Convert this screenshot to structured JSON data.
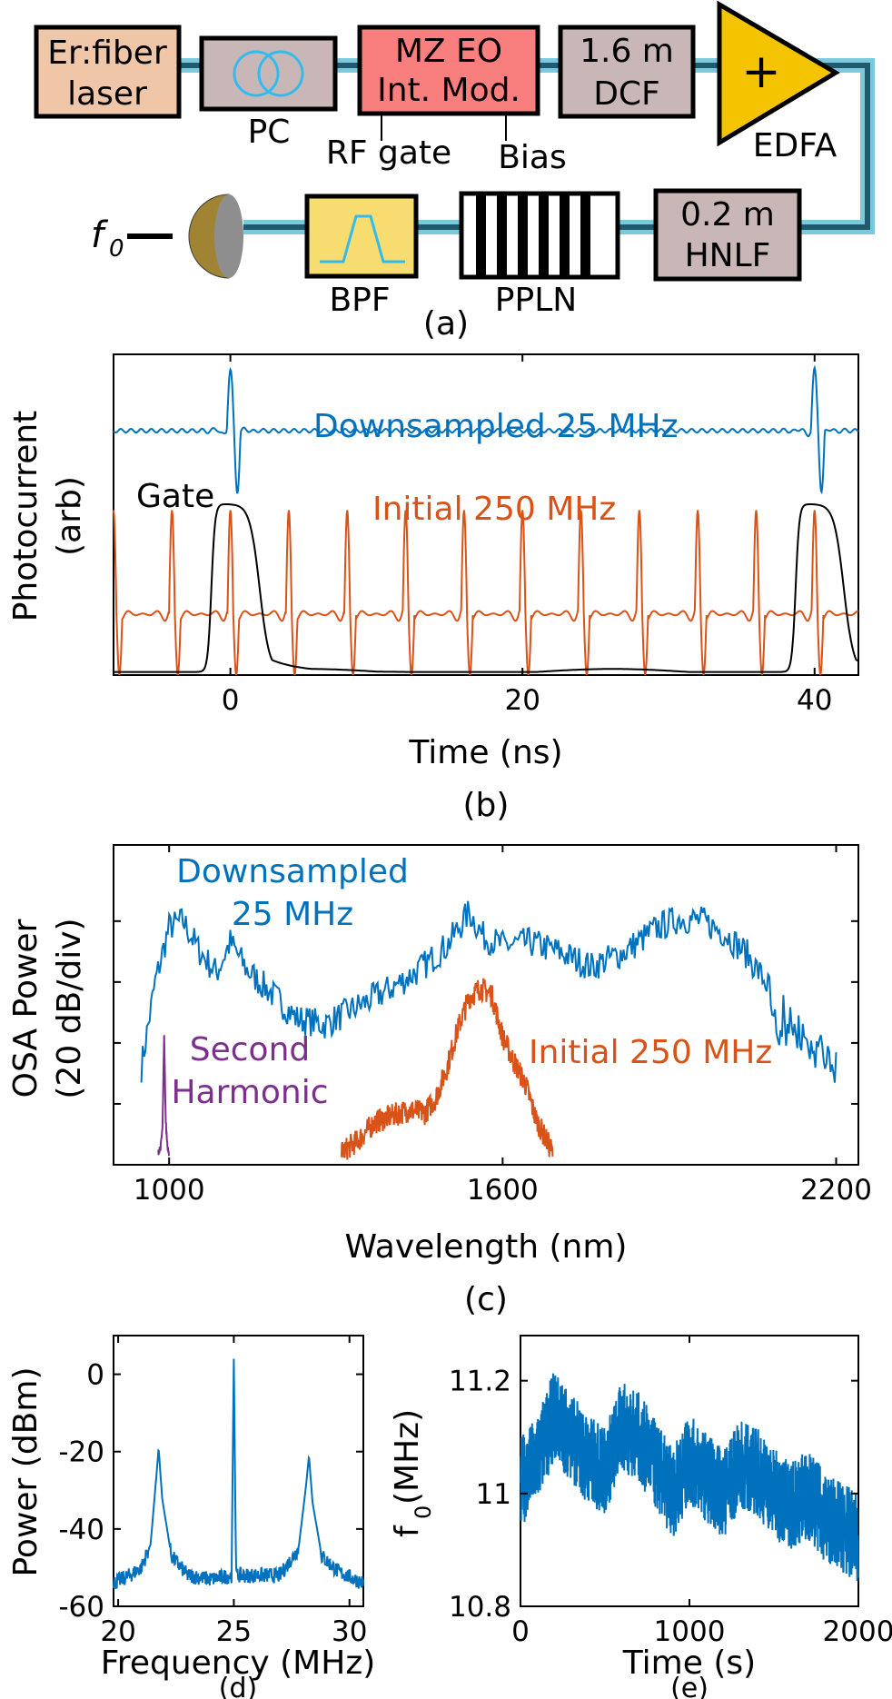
{
  "colors": {
    "blue": "#0072BD",
    "orange": "#D95319",
    "purple": "#7E2F8E",
    "black": "#000000",
    "fiber": "#1f5a6e",
    "fiber_glow": "#7cc9de",
    "laser_fill": "#efc7a8",
    "pc_fill": "#c9b7b8",
    "mod_fill": "#f97f7f",
    "dcf_fill": "#c9b7b8",
    "edfa_fill": "#f5c400",
    "hnlf_fill": "#c9b7b8",
    "bpf_fill": "#f7dc6f",
    "detector_fill": "#a08434",
    "pc_icon": "#33bbee"
  },
  "schematic": {
    "laser": "Er:fiber laser",
    "laser_line1": "Er:fiber",
    "laser_line2": "laser",
    "pc": "PC",
    "modulator_line1": "MZ EO",
    "modulator_line2": "Int. Mod.",
    "rf_gate": "RF gate",
    "bias": "Bias",
    "dcf_line1": "1.6 m",
    "dcf_line2": "DCF",
    "edfa": "EDFA",
    "edfa_symbol": "+",
    "hnlf_line1": "0.2 m",
    "hnlf_line2": "HNLF",
    "ppln": "PPLN",
    "bpf": "BPF",
    "output_f": "f",
    "output_sub": "0",
    "panel": "(a)"
  },
  "chart_data": [
    {
      "id": "b",
      "type": "line",
      "panel": "(b)",
      "xlabel": "Time (ns)",
      "ylabel_line1": "Photocurrent",
      "ylabel_line2": "(arb)",
      "xlim": [
        -8,
        43
      ],
      "xticks": [
        0,
        20,
        40
      ],
      "yticks": [],
      "series": [
        {
          "name": "Downsampled 25 MHz",
          "color": "#0072BD",
          "waveform": "pulse",
          "pulse_times": [
            0,
            40
          ],
          "baseline": 0.8,
          "pulse_peak": 1.0,
          "pulse_min": 0.6
        },
        {
          "name": "Initial 250 MHz",
          "color": "#D95319",
          "waveform": "pulse",
          "pulse_period": 4,
          "pulse_start": -8,
          "baseline": 0.2,
          "pulse_peak": 0.54,
          "pulse_min": 0.0
        },
        {
          "name": "Gate",
          "color": "#000000",
          "waveform": "gate",
          "gate_windows": [
            [
              -1.3,
              2.0
            ],
            [
              38.7,
              42.0
            ]
          ],
          "low": 0.01,
          "high": 0.56
        }
      ]
    },
    {
      "id": "c",
      "type": "line",
      "panel": "(c)",
      "xlabel": "Wavelength (nm)",
      "ylabel_line1": "OSA Power",
      "ylabel_line2": "(20 dB/div)",
      "xlim": [
        900,
        2240
      ],
      "ylim": [
        -100,
        5
      ],
      "xticks": [
        1000,
        1600,
        2200
      ],
      "yticks": [
        -80,
        -60,
        -40,
        -20
      ],
      "series": [
        {
          "name": "Downsampled 25 MHz",
          "label_line1": "Downsampled",
          "label_line2": "25 MHz",
          "color": "#0072BD",
          "x": [
            950,
            975,
            1000,
            1025,
            1055,
            1085,
            1110,
            1140,
            1180,
            1230,
            1280,
            1340,
            1400,
            1450,
            1500,
            1540,
            1565,
            1600,
            1650,
            1700,
            1760,
            1820,
            1880,
            1920,
            1960,
            2000,
            2040,
            2080,
            2110,
            2140,
            2160,
            2200
          ],
          "y": [
            -68,
            -40,
            -22,
            -20,
            -30,
            -37,
            -27,
            -36,
            -43,
            -52,
            -54,
            -48,
            -42,
            -36,
            -28,
            -17,
            -25,
            -28,
            -27,
            -30,
            -35,
            -30,
            -22,
            -19,
            -20,
            -24,
            -31,
            -42,
            -48,
            -50,
            -57,
            -57
          ]
        },
        {
          "name": "Initial 250 MHz",
          "color": "#D95319",
          "x": [
            1310,
            1340,
            1370,
            1400,
            1430,
            1460,
            1480,
            1500,
            1520,
            1540,
            1560,
            1580,
            1600,
            1620,
            1640,
            1660,
            1690
          ],
          "y": [
            -96,
            -92,
            -86,
            -84,
            -82,
            -83,
            -78,
            -68,
            -55,
            -45,
            -42,
            -44,
            -58,
            -66,
            -73,
            -85,
            -96
          ]
        },
        {
          "name": "Second Harmonic",
          "label_line1": "Second",
          "label_line2": "Harmonic",
          "color": "#7E2F8E",
          "x": [
            980,
            985,
            988,
            991,
            994,
            997,
            1000
          ],
          "y": [
            -96,
            -94,
            -88,
            -58,
            -86,
            -94,
            -96
          ]
        }
      ]
    },
    {
      "id": "d",
      "type": "line",
      "panel": "(d)",
      "xlabel": "Frequency (MHz)",
      "ylabel": "Power (dBm)",
      "xlim": [
        19.8,
        30.6
      ],
      "ylim": [
        -60,
        10
      ],
      "xticks": [
        20,
        25,
        30
      ],
      "yticks": [
        0,
        -20,
        -40,
        -60
      ],
      "series": [
        {
          "name": "",
          "color": "#0072BD",
          "x": [
            19.8,
            20.5,
            21.0,
            21.4,
            21.6,
            21.75,
            21.9,
            22.3,
            23.0,
            24.0,
            24.9,
            25.0,
            25.1,
            26.0,
            27.0,
            27.8,
            28.1,
            28.25,
            28.4,
            28.8,
            29.5,
            30.6
          ],
          "y": [
            -54,
            -52,
            -50,
            -44,
            -30,
            -19,
            -32,
            -47,
            -52,
            -53,
            -52,
            4,
            -52,
            -52,
            -52,
            -45,
            -30,
            -21,
            -33,
            -47,
            -51,
            -54
          ]
        }
      ]
    },
    {
      "id": "e",
      "type": "line",
      "panel": "(e)",
      "xlabel": "Time (s)",
      "ylabel_f": "f",
      "ylabel_sub": "0",
      "ylabel_unit": " (MHz)",
      "xlim": [
        0,
        2000
      ],
      "ylim": [
        10.8,
        11.28
      ],
      "xticks": [
        0,
        1000,
        2000
      ],
      "yticks": [
        11.2,
        11,
        10.8
      ],
      "series": [
        {
          "name": "",
          "color": "#0072BD",
          "x": [
            0,
            100,
            200,
            300,
            400,
            500,
            600,
            700,
            800,
            900,
            1000,
            1100,
            1200,
            1300,
            1400,
            1500,
            1600,
            1700,
            1800,
            1900,
            2000
          ],
          "y": [
            11.02,
            11.06,
            11.14,
            11.1,
            11.06,
            11.04,
            11.12,
            11.1,
            11.05,
            11.0,
            11.06,
            11.03,
            11.0,
            11.05,
            11.04,
            11.0,
            10.98,
            11.0,
            10.96,
            10.94,
            10.92
          ]
        }
      ]
    }
  ]
}
